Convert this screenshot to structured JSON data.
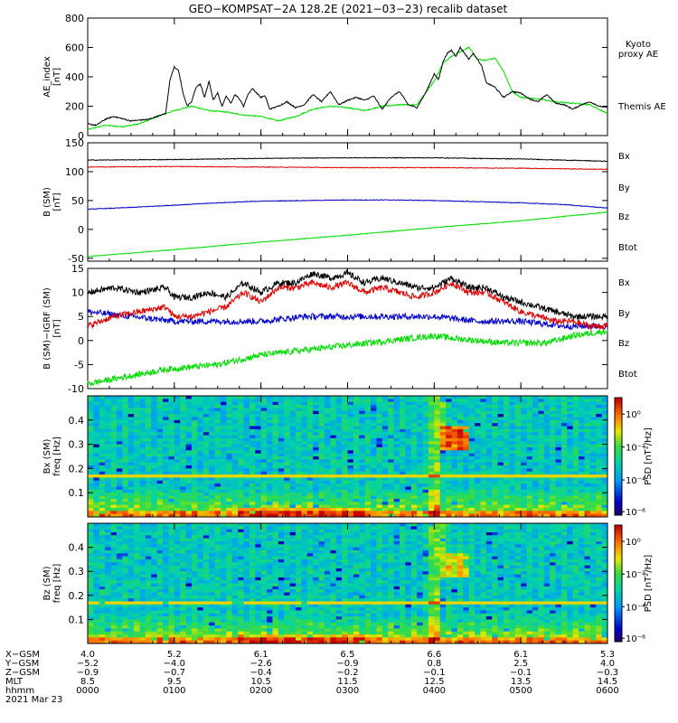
{
  "title": "GEO−KOMPSAT−2A 128.2E (2021−03−23) recalib dataset",
  "colors": {
    "black": "#000000",
    "red": "#e00000",
    "green": "#00dd00",
    "blue": "#0000cc"
  },
  "chart_data": [
    {
      "type": "line",
      "panel": "ae",
      "ylabel_lines": [
        "AE_index",
        "[nT]"
      ],
      "ylim": [
        0,
        800
      ],
      "yticks": [
        0,
        200,
        400,
        600,
        800
      ],
      "xlim": [
        0,
        6
      ],
      "series": [
        {
          "name": "Themis AE",
          "color": "#000000",
          "x": [
            0,
            0.1,
            0.2,
            0.3,
            0.5,
            0.7,
            0.8,
            0.9,
            0.95,
            1.0,
            1.05,
            1.1,
            1.15,
            1.2,
            1.25,
            1.3,
            1.35,
            1.4,
            1.45,
            1.5,
            1.55,
            1.6,
            1.65,
            1.7,
            1.75,
            1.8,
            1.85,
            1.9,
            2.0,
            2.05,
            2.1,
            2.2,
            2.3,
            2.4,
            2.5,
            2.6,
            2.7,
            2.8,
            2.9,
            3.0,
            3.1,
            3.2,
            3.3,
            3.4,
            3.5,
            3.6,
            3.7,
            3.8,
            3.9,
            4.0,
            4.05,
            4.1,
            4.15,
            4.2,
            4.25,
            4.3,
            4.35,
            4.4,
            4.45,
            4.5,
            4.55,
            4.6,
            4.7,
            4.8,
            4.9,
            5.0,
            5.1,
            5.2,
            5.3,
            5.4,
            5.5,
            5.6,
            5.7,
            5.8,
            5.9,
            6.0
          ],
          "values": [
            80,
            70,
            110,
            130,
            100,
            110,
            130,
            150,
            380,
            470,
            440,
            290,
            200,
            230,
            330,
            350,
            260,
            370,
            240,
            290,
            200,
            270,
            220,
            280,
            250,
            200,
            280,
            320,
            260,
            270,
            180,
            200,
            230,
            190,
            210,
            280,
            230,
            300,
            210,
            240,
            260,
            240,
            270,
            180,
            260,
            300,
            210,
            190,
            290,
            420,
            380,
            500,
            560,
            580,
            540,
            600,
            560,
            520,
            560,
            520,
            470,
            360,
            330,
            260,
            300,
            290,
            250,
            230,
            280,
            220,
            210,
            180,
            210,
            230,
            200,
            190
          ]
        },
        {
          "name": "Kyoto proxy AE",
          "color": "#00dd00",
          "x": [
            0,
            0.2,
            0.4,
            0.6,
            0.8,
            1.0,
            1.2,
            1.4,
            1.6,
            1.8,
            2.0,
            2.2,
            2.4,
            2.6,
            2.8,
            3.0,
            3.2,
            3.4,
            3.6,
            3.8,
            4.0,
            4.1,
            4.2,
            4.3,
            4.4,
            4.5,
            4.6,
            4.7,
            4.8,
            4.9,
            5.0,
            5.2,
            5.4,
            5.6,
            5.8,
            6.0
          ],
          "values": [
            40,
            70,
            60,
            80,
            130,
            170,
            200,
            170,
            160,
            140,
            130,
            100,
            130,
            180,
            200,
            190,
            170,
            200,
            210,
            210,
            370,
            490,
            540,
            570,
            600,
            520,
            510,
            530,
            440,
            300,
            260,
            250,
            230,
            220,
            210,
            150
          ]
        }
      ],
      "legend": [
        "Kyoto",
        "proxy AE",
        "Themis AE"
      ]
    },
    {
      "type": "line",
      "panel": "b",
      "ylabel_lines": [
        "B (SM)",
        "[nT]"
      ],
      "ylim": [
        -55,
        150
      ],
      "yticks": [
        -50,
        0,
        50,
        100,
        150
      ],
      "xlim": [
        0,
        6
      ],
      "series": [
        {
          "name": "Btot",
          "color": "#000000",
          "x": [
            0,
            1,
            2,
            3,
            4,
            5,
            6
          ],
          "values": [
            120,
            121,
            123,
            124,
            124,
            122,
            118
          ]
        },
        {
          "name": "Bz",
          "color": "#e00000",
          "x": [
            0,
            1,
            2,
            3,
            4,
            5,
            6
          ],
          "values": [
            108,
            109,
            108,
            107,
            107,
            106,
            104
          ]
        },
        {
          "name": "Bx",
          "color": "#0000cc",
          "x": [
            0,
            0.5,
            1,
            1.5,
            2,
            2.5,
            3,
            3.5,
            4,
            4.5,
            5,
            5.5,
            6
          ],
          "values": [
            35,
            38,
            42,
            46,
            49,
            50,
            51,
            51,
            50,
            48,
            46,
            43,
            37
          ]
        },
        {
          "name": "By",
          "color": "#00dd00",
          "x": [
            0,
            1,
            2,
            3,
            4,
            5,
            6
          ],
          "values": [
            -47,
            -35,
            -22,
            -10,
            3,
            15,
            30
          ]
        }
      ],
      "legend": [
        "Bx",
        "By",
        "Bz",
        "Btot"
      ]
    },
    {
      "type": "line",
      "panel": "db",
      "ylabel_lines": [
        "B (SM)−IGRF (SM)",
        "[nT]"
      ],
      "ylim": [
        -10,
        15
      ],
      "yticks": [
        -10,
        -5,
        0,
        5,
        10,
        15
      ],
      "xlim": [
        0,
        6
      ],
      "series": [
        {
          "name": "Btot",
          "color": "#000000",
          "x": [
            0,
            0.3,
            0.6,
            0.9,
            1.0,
            1.2,
            1.4,
            1.6,
            1.8,
            2.0,
            2.2,
            2.4,
            2.6,
            2.8,
            3.0,
            3.2,
            3.4,
            3.6,
            3.8,
            4.0,
            4.2,
            4.4,
            4.6,
            4.8,
            5.0,
            5.2,
            5.4,
            5.6,
            5.8,
            6.0
          ],
          "values": [
            10,
            11,
            10,
            11,
            9,
            9,
            10,
            9,
            12,
            10,
            12,
            12,
            14,
            13,
            14,
            12,
            13,
            12,
            11,
            11,
            13,
            11,
            11,
            9,
            8,
            7,
            6,
            5,
            5,
            5
          ]
        },
        {
          "name": "Bz",
          "color": "#e00000",
          "x": [
            0,
            0.3,
            0.6,
            0.9,
            1.0,
            1.2,
            1.4,
            1.6,
            1.8,
            2.0,
            2.2,
            2.4,
            2.6,
            2.8,
            3.0,
            3.2,
            3.4,
            3.6,
            3.8,
            4.0,
            4.2,
            4.4,
            4.6,
            4.8,
            5.0,
            5.2,
            5.4,
            5.6,
            5.8,
            6.0
          ],
          "values": [
            3,
            5,
            6,
            7,
            5,
            5,
            6,
            7,
            10,
            8,
            11,
            11,
            12,
            11,
            12,
            10,
            11,
            10,
            9,
            10,
            12,
            10,
            10,
            8,
            6,
            5,
            4,
            4,
            3,
            3
          ]
        },
        {
          "name": "Bx",
          "color": "#0000cc",
          "x": [
            0,
            0.5,
            1,
            1.5,
            2,
            2.5,
            3,
            3.5,
            4,
            4.5,
            5,
            5.5,
            6
          ],
          "values": [
            6,
            5,
            4,
            4,
            4,
            5,
            5,
            5,
            5,
            4,
            4,
            3,
            3
          ]
        },
        {
          "name": "By",
          "color": "#00dd00",
          "x": [
            0,
            0.3,
            0.6,
            0.9,
            1.2,
            1.5,
            2.0,
            2.5,
            3.0,
            3.5,
            4.0,
            4.2,
            4.5,
            4.8,
            5.0,
            5.3,
            5.6,
            6.0
          ],
          "values": [
            -9,
            -8,
            -7,
            -6,
            -5.5,
            -5,
            -3,
            -2,
            -1,
            0,
            1,
            0.5,
            0,
            -0.5,
            -0.5,
            -0.5,
            1,
            2
          ]
        }
      ],
      "legend": [
        "Bx",
        "By",
        "Bz",
        "Btot"
      ]
    },
    {
      "type": "heatmap",
      "panel": "bx-spec",
      "ylabel_lines": [
        "Bx (SM)",
        "freq [Hz]"
      ],
      "ylim": [
        0,
        0.5
      ],
      "yticks": [
        0.1,
        0.2,
        0.3,
        0.4
      ],
      "colorbar": {
        "label": "PSD [nT²/Hz]",
        "ticks": [
          "10⁰",
          "10⁻²",
          "10⁻⁴",
          "10⁻⁶"
        ]
      }
    },
    {
      "type": "heatmap",
      "panel": "bz-spec",
      "ylabel_lines": [
        "Bz (SM)",
        "freq [Hz]"
      ],
      "ylim": [
        0,
        0.5
      ],
      "yticks": [
        0.1,
        0.2,
        0.3,
        0.4
      ],
      "colorbar": {
        "label": "PSD [nT²/Hz]",
        "ticks": [
          "10⁰",
          "10⁻²",
          "10⁻⁴",
          "10⁻⁶"
        ]
      }
    }
  ],
  "ephemeris": {
    "row_labels": [
      "X−GSM",
      "Y−GSM",
      "Z−GSM",
      "MLT",
      "hhmm"
    ],
    "columns": [
      [
        "4.0",
        "−5.2",
        "−0.9",
        "8.5",
        "0000"
      ],
      [
        "5.2",
        "−4.0",
        "−0.7",
        "9.5",
        "0100"
      ],
      [
        "6.1",
        "−2.6",
        "−0.4",
        "10.5",
        "0200"
      ],
      [
        "6.5",
        "−0.9",
        "−0.2",
        "11.5",
        "0300"
      ],
      [
        "6.6",
        "0.8",
        "−0.1",
        "12.5",
        "0400"
      ],
      [
        "6.1",
        "2.5",
        "−0.1",
        "13.5",
        "0500"
      ],
      [
        "5.3",
        "4.0",
        "−0.3",
        "14.5",
        "0600"
      ]
    ],
    "date": "2021 Mar 23"
  }
}
